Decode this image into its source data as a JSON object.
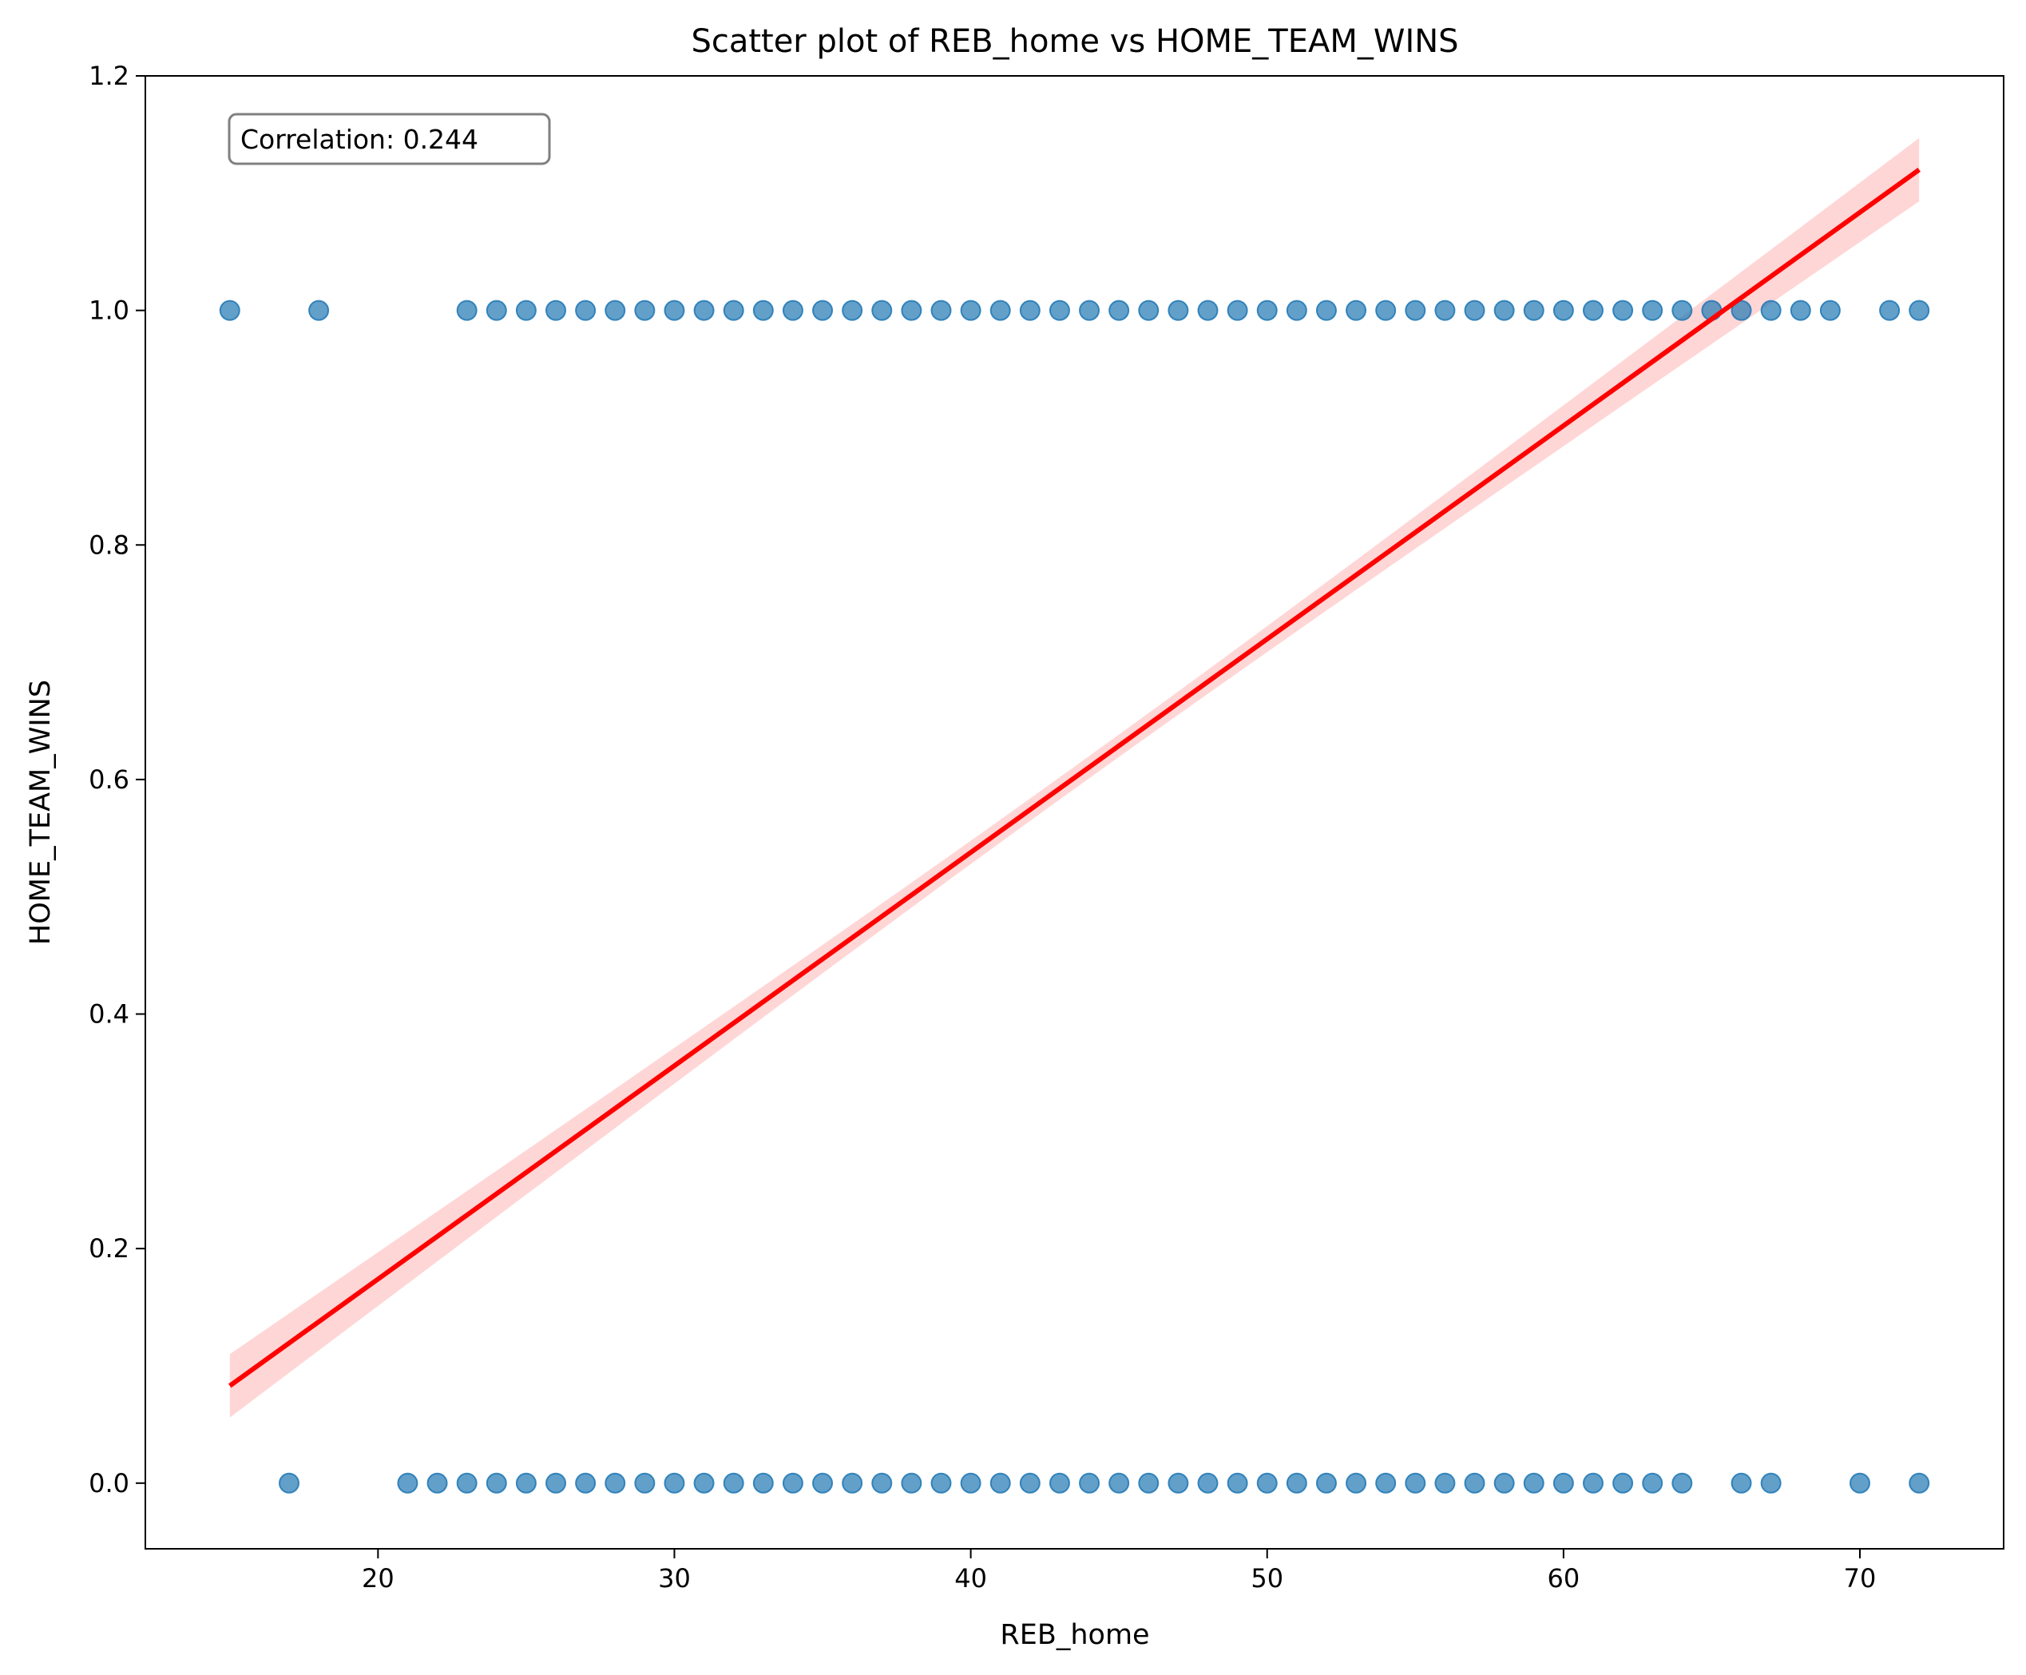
{
  "chart_data": {
    "type": "scatter",
    "title": "Scatter plot of REB_home vs HOME_TEAM_WINS",
    "xlabel": "REB_home",
    "ylabel": "HOME_TEAM_WINS",
    "xlim": [
      12.15,
      74.85
    ],
    "ylim": [
      -0.056,
      1.2
    ],
    "x_ticks": [
      20,
      30,
      40,
      50,
      60,
      70
    ],
    "y_ticks": [
      0.0,
      0.2,
      0.4,
      0.6,
      0.8,
      1.0,
      1.2
    ],
    "x_tick_labels": [
      "20",
      "30",
      "40",
      "50",
      "60",
      "70"
    ],
    "y_tick_labels": [
      "0.0",
      "0.2",
      "0.4",
      "0.6",
      "0.8",
      "1.0",
      "1.2"
    ],
    "grid": false,
    "annotation": "Correlation: 0.244",
    "annotation_position": "top-left",
    "series": [
      {
        "color": "#1f77b4",
        "wins_x": [
          15,
          18,
          23,
          24,
          25,
          26,
          27,
          28,
          29,
          30,
          31,
          32,
          33,
          34,
          35,
          36,
          37,
          38,
          39,
          40,
          41,
          42,
          43,
          44,
          45,
          46,
          47,
          48,
          49,
          50,
          51,
          52,
          53,
          54,
          55,
          56,
          57,
          58,
          59,
          60,
          61,
          62,
          63,
          64,
          65,
          66,
          67,
          68,
          69,
          71,
          72
        ],
        "wins_y": 1,
        "losses_x": [
          17,
          21,
          22,
          23,
          24,
          25,
          26,
          27,
          28,
          29,
          30,
          31,
          32,
          33,
          34,
          35,
          36,
          37,
          38,
          39,
          40,
          41,
          42,
          43,
          44,
          45,
          46,
          47,
          48,
          49,
          50,
          51,
          52,
          53,
          54,
          55,
          56,
          57,
          58,
          59,
          60,
          61,
          62,
          63,
          64,
          66,
          67,
          70,
          72
        ],
        "losses_y": 0
      }
    ],
    "regression": {
      "color": "#ff0000",
      "x_range": [
        15,
        72
      ],
      "y_at_start": 0.083,
      "y_at_end": 1.12,
      "ci_half_width_at_ends": 0.027,
      "ci_color": "#ffcccc"
    }
  }
}
